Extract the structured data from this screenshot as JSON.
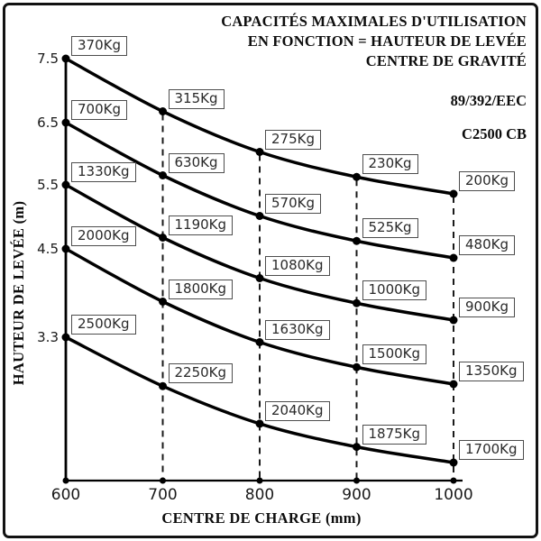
{
  "window": {
    "background": "#ffffff",
    "frame_border_color": "#111111"
  },
  "chart_data": {
    "type": "line",
    "title_lines": [
      "CAPACITÉS MAXIMALES D'UTILISATION",
      "EN FONCTION = HAUTEUR DE LEVÉE",
      "CENTRE DE GRAVITÉ"
    ],
    "annotations": {
      "directive": "89/392/EEC",
      "model": "C2500 CB"
    },
    "xlabel": "CENTRE DE CHARGE (mm)",
    "ylabel": "HAUTEUR DE LEVÉE (m)",
    "x_ticks": [
      600,
      700,
      800,
      900,
      1000
    ],
    "y_ticks": [
      7.5,
      6.5,
      5.5,
      4.5,
      3.3
    ],
    "x_range": [
      600,
      1000
    ],
    "y_axis_unit": "m",
    "capacity_unit": "Kg",
    "grid": "dashed-vertical-at-x-ticks",
    "legend": "none",
    "series": [
      {
        "name": "hauteur-7.5m",
        "height_m": 7.5,
        "values": [
          370,
          315,
          275,
          230,
          200
        ],
        "labels": [
          "370Kg",
          "315Kg",
          "275Kg",
          "230Kg",
          "200Kg"
        ]
      },
      {
        "name": "hauteur-6.5m",
        "height_m": 6.5,
        "values": [
          700,
          630,
          570,
          525,
          480
        ],
        "labels": [
          "700Kg",
          "630Kg",
          "570Kg",
          "525Kg",
          "480Kg"
        ]
      },
      {
        "name": "hauteur-5.5m",
        "height_m": 5.5,
        "values": [
          1330,
          1190,
          1080,
          1000,
          900
        ],
        "labels": [
          "1330Kg",
          "1190Kg",
          "1080Kg",
          "1000Kg",
          "900Kg"
        ]
      },
      {
        "name": "hauteur-4.5m",
        "height_m": 4.5,
        "values": [
          2000,
          1800,
          1630,
          1500,
          1350
        ],
        "labels": [
          "2000Kg",
          "1800Kg",
          "1630Kg",
          "1500Kg",
          "1350Kg"
        ]
      },
      {
        "name": "hauteur-3.3m",
        "height_m": 3.3,
        "values": [
          2500,
          2250,
          2040,
          1875,
          1700
        ],
        "labels": [
          "2500Kg",
          "2250Kg",
          "2040Kg",
          "1875Kg",
          "1700Kg"
        ]
      }
    ],
    "colors": {
      "curve": "#000000",
      "axis": "#000000",
      "gridline": "#1a1a1a",
      "label_box_border": "#4d4d4d",
      "label_text": "#2a2a2a",
      "tick_text": "#1a1a1a",
      "title_text": "#0d0d0d"
    }
  }
}
